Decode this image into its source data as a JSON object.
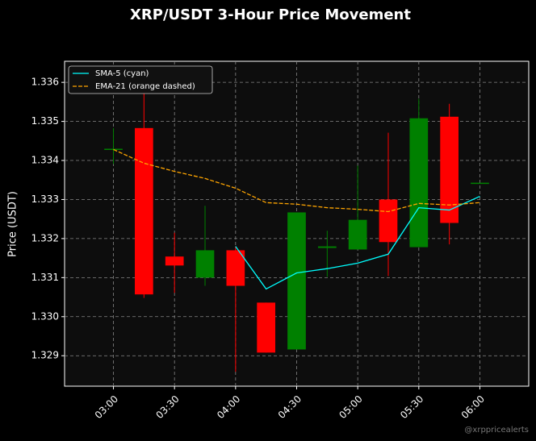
{
  "chart_data": {
    "type": "candlestick",
    "title": "XRP/USDT 3-Hour Price Movement",
    "y_label": "Price (USDT)",
    "watermark": "@xrppricealerts",
    "x": [
      "03:00",
      "03:15",
      "03:30",
      "03:45",
      "04:00",
      "04:15",
      "04:30",
      "04:45",
      "05:00",
      "05:15",
      "05:30",
      "05:45",
      "06:00"
    ],
    "open": [
      1.3343,
      1.33483,
      1.33154,
      1.331,
      1.3317,
      1.33036,
      1.32916,
      1.33176,
      1.33172,
      1.333,
      1.33178,
      1.33512,
      1.33343
    ],
    "high": [
      1.33483,
      1.33573,
      1.33215,
      1.33284,
      1.3318,
      1.33036,
      1.33267,
      1.3322,
      1.33387,
      1.33471,
      1.33558,
      1.33545,
      1.33343
    ],
    "low": [
      1.33391,
      1.33048,
      1.33061,
      1.33079,
      1.32859,
      1.32908,
      1.32916,
      1.33102,
      1.33172,
      1.33104,
      1.33178,
      1.33185,
      1.33343
    ],
    "close": [
      1.3343,
      1.33057,
      1.33131,
      1.3317,
      1.33079,
      1.32908,
      1.33267,
      1.3318,
      1.33248,
      1.33191,
      1.33508,
      1.3324,
      1.33343
    ],
    "up_color": "#008000",
    "down_color": "#ff0000",
    "series": [
      {
        "name": "SMA-5 (cyan)",
        "color": "#00ffff",
        "dashed": false,
        "values": [
          null,
          null,
          null,
          null,
          1.3318,
          1.33071,
          1.33112,
          1.33123,
          1.33137,
          1.3316,
          1.33279,
          1.33273,
          1.33308
        ]
      },
      {
        "name": "EMA-21 (orange dashed)",
        "color": "#ffa500",
        "dashed": true,
        "values": [
          1.33428,
          1.33393,
          1.33372,
          1.33354,
          1.33329,
          1.33292,
          1.33288,
          1.33279,
          1.33275,
          1.33269,
          1.3329,
          1.33286,
          1.33292
        ]
      }
    ],
    "xlim": [
      "02:36",
      "06:24"
    ],
    "xticks": [
      "03:00",
      "03:30",
      "04:00",
      "04:30",
      "05:00",
      "05:30",
      "06:00"
    ],
    "ylim": [
      1.32822,
      1.33654
    ],
    "yticks": [
      1.329,
      {
        "value": 1.33,
        "label": "1.330"
      },
      1.331,
      1.332,
      1.333,
      1.334,
      1.335,
      1.336
    ],
    "grid": true,
    "legend": "upper left"
  }
}
